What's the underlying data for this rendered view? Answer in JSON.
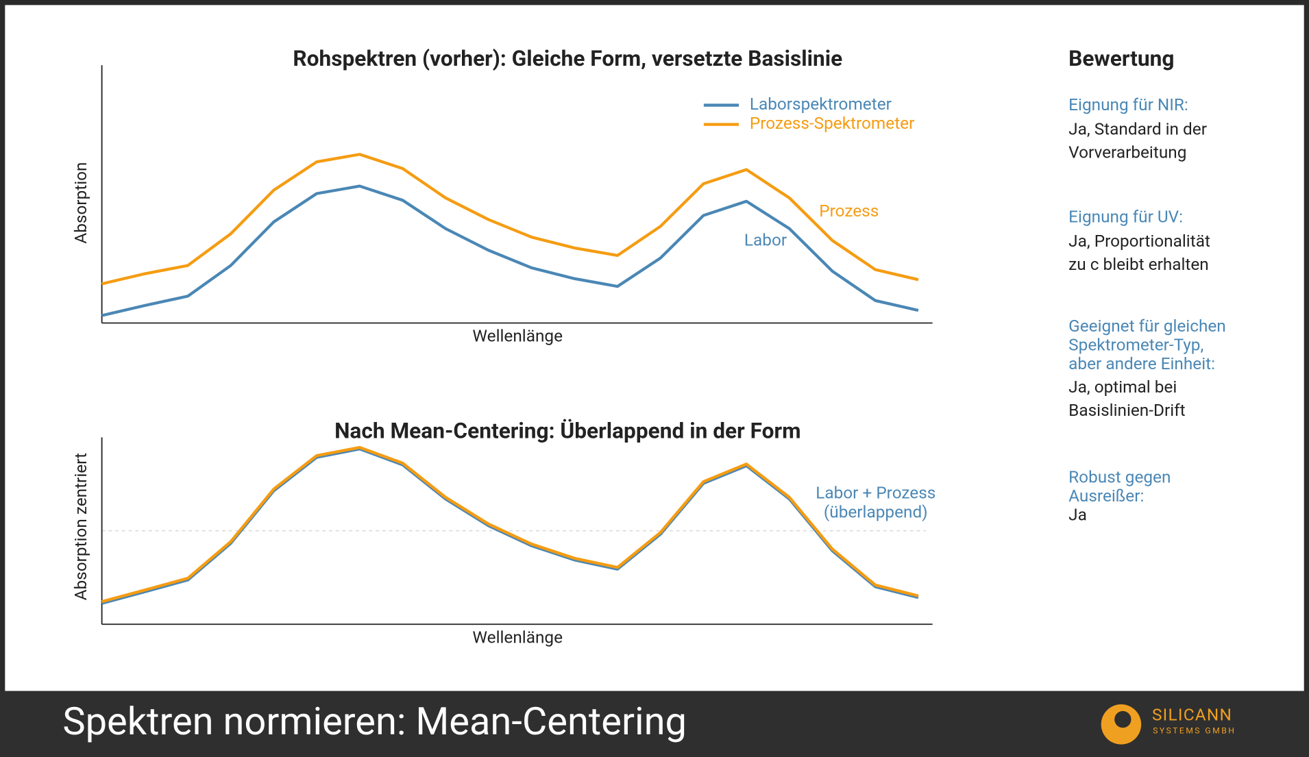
{
  "chart_data": [
    {
      "type": "line",
      "title": "Rohspektren (vorher): Gleiche Form, versetzte Basislinie",
      "x_label": "Wellenlänge",
      "y_label": "Absorption",
      "x": [
        0,
        1,
        2,
        3,
        4,
        5,
        6,
        7,
        8,
        9,
        10,
        11,
        12,
        13,
        14,
        15,
        16,
        17,
        18,
        19
      ],
      "xlim": [
        0,
        19.33
      ],
      "ylim": [
        0,
        10
      ],
      "legend": "upper right",
      "series": [
        {
          "name": "Laborspektrometer",
          "color": "#4a87b5",
          "values": [
            0.29,
            0.68,
            1.04,
            2.23,
            3.92,
            5.02,
            5.31,
            4.76,
            3.66,
            2.82,
            2.14,
            1.72,
            1.42,
            2.52,
            4.17,
            4.72,
            3.66,
            2.01,
            0.87,
            0.49
          ]
        },
        {
          "name": "Prozess-Spektrometer",
          "color": "#f59c12",
          "values": [
            1.52,
            1.91,
            2.23,
            3.46,
            5.15,
            6.25,
            6.54,
            5.99,
            4.85,
            4.01,
            3.33,
            2.91,
            2.62,
            3.75,
            5.4,
            5.95,
            4.85,
            3.2,
            2.07,
            1.68
          ]
        }
      ],
      "annotations": [
        {
          "text": [
            "Prozess"
          ],
          "color": "#f59c12"
        },
        {
          "text": [
            "Labor"
          ],
          "color": "#4a87b5"
        }
      ]
    },
    {
      "type": "line",
      "title": "Nach Mean-Centering: Überlappend in der Form",
      "x_label": "Wellenlänge",
      "y_label": "Absorption zentriert",
      "x": [
        0,
        1,
        2,
        3,
        4,
        5,
        6,
        7,
        8,
        9,
        10,
        11,
        12,
        13,
        14,
        15,
        16,
        17,
        18,
        19
      ],
      "xlim": [
        0,
        19.33
      ],
      "ylim": [
        -5,
        5
      ],
      "hline": 0,
      "series": [
        {
          "color": "#4a87b5",
          "values": [
            -3.88,
            -3.26,
            -2.63,
            -0.67,
            2.14,
            3.93,
            4.38,
            3.53,
            1.7,
            0.27,
            -0.8,
            -1.56,
            -2.05,
            -0.18,
            2.54,
            3.48,
            1.7,
            -1.07,
            -2.99,
            -3.57
          ]
        },
        {
          "color": "#f59c12",
          "values": [
            -3.79,
            -3.17,
            -2.54,
            -0.58,
            2.23,
            4.02,
            4.46,
            3.62,
            1.79,
            0.36,
            -0.71,
            -1.47,
            -1.96,
            -0.09,
            2.63,
            3.57,
            1.79,
            -0.98,
            -2.9,
            -3.48
          ]
        }
      ],
      "annotations": [
        {
          "text": [
            "Labor + Prozess",
            "(überlappend)"
          ],
          "color": "#4a87b5"
        }
      ]
    }
  ],
  "panel": {
    "title": "Bewertung",
    "items": [
      {
        "label": [
          "Eignung für NIR:"
        ],
        "text": [
          "Ja, Standard in der",
          "Vorverarbeitung"
        ]
      },
      {
        "label": [
          "Eignung für UV:"
        ],
        "text": [
          "Ja, Proportionalität",
          "zu c bleibt erhalten"
        ]
      },
      {
        "label": [
          "Geeignet für gleichen",
          "Spektrometer-Typ,",
          "aber andere Einheit:"
        ],
        "text": [
          "Ja, optimal bei",
          "Basislinien-Drift"
        ]
      },
      {
        "label": [
          "Robust gegen",
          "Ausreißer:"
        ],
        "text": [
          "Ja"
        ]
      }
    ]
  },
  "footer": {
    "title": "Spektren normieren: Mean-Centering",
    "logo": "SILICANN",
    "logo_sub": "SYSTEMS GMBH"
  }
}
